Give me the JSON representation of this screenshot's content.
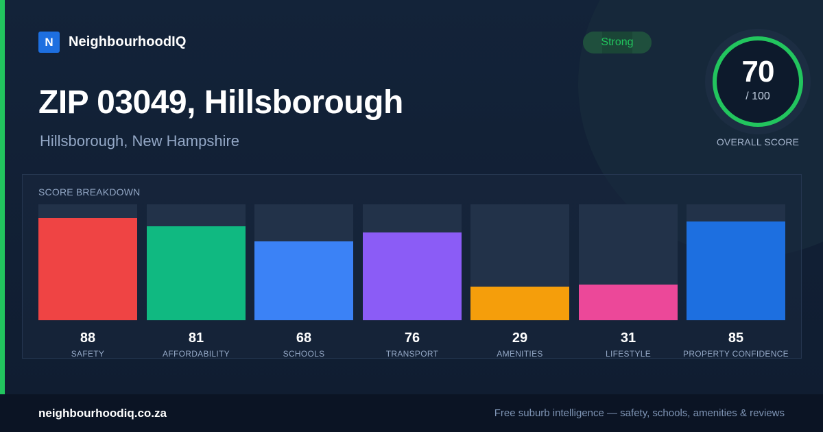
{
  "brand": {
    "logo_letter": "N",
    "name": "NeighbourhoodIQ"
  },
  "header": {
    "title": "ZIP 03049, Hillsborough",
    "subtitle": "Hillsborough, New Hampshire"
  },
  "rating_badge": {
    "label": "Strong"
  },
  "overall": {
    "score": "70",
    "max": "/ 100",
    "label": "OVERALL SCORE",
    "fraction": 0.7,
    "color": "#22c55e"
  },
  "breakdown": {
    "title": "SCORE BREAKDOWN"
  },
  "chart_data": {
    "type": "bar",
    "title": "SCORE BREAKDOWN",
    "ylim": [
      0,
      100
    ],
    "categories": [
      "SAFETY",
      "AFFORDABILITY",
      "SCHOOLS",
      "TRANSPORT",
      "AMENITIES",
      "LIFESTYLE",
      "PROPERTY CONFIDENCE"
    ],
    "values": [
      88,
      81,
      68,
      76,
      29,
      31,
      85
    ],
    "colors": [
      "#ef4444",
      "#10b981",
      "#3b82f6",
      "#8b5cf6",
      "#f59e0b",
      "#ec4899",
      "#1d6fe0"
    ]
  },
  "footer": {
    "url": "neighbourhoodiq.co.za",
    "tagline": "Free suburb intelligence — safety, schools, amenities & reviews"
  },
  "colors": {
    "accent": "#22c55e",
    "background": "#0f1c30",
    "track": "#223249"
  }
}
